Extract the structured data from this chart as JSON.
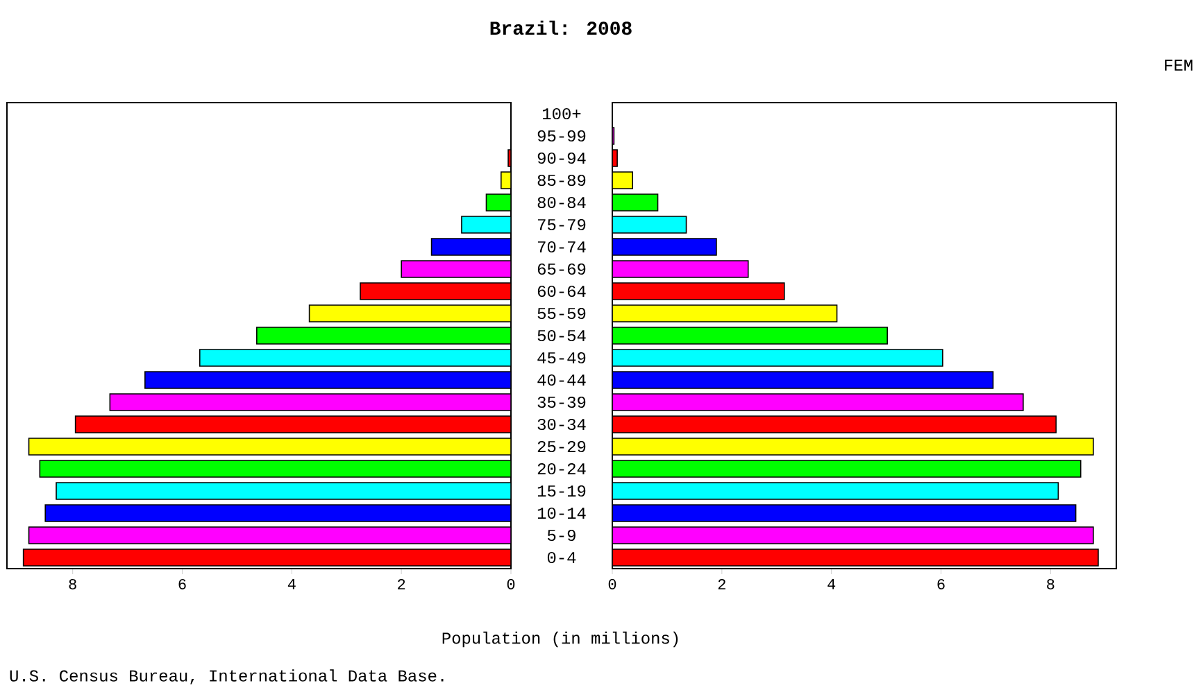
{
  "chart_data": [
    {
      "type": "bar",
      "orientation": "horizontal",
      "title": "Brazil: 2008",
      "xlabel": "Population (in millions)",
      "annotations": [
        "U.S. Census Bureau, International Data Base."
      ],
      "categories": [
        "100+",
        "95-99",
        "90-94",
        "85-89",
        "80-84",
        "75-79",
        "70-74",
        "65-69",
        "60-64",
        "55-59",
        "50-54",
        "45-49",
        "40-44",
        "35-39",
        "30-34",
        "25-29",
        "20-24",
        "15-19",
        "10-14",
        "5-9",
        "0-4"
      ],
      "values": [
        null,
        null,
        0.05,
        0.18,
        0.45,
        0.9,
        1.45,
        2.0,
        2.75,
        3.68,
        4.64,
        5.68,
        6.68,
        7.32,
        7.95,
        8.8,
        8.6,
        8.3,
        8.5,
        8.8,
        8.9
      ],
      "colors": [
        "#0000ff",
        "#ff00ff",
        "#ff0000",
        "#ffff00",
        "#00ff00",
        "#00ffff",
        "#0000ff",
        "#ff00ff",
        "#ff0000",
        "#ffff00",
        "#00ff00",
        "#00ffff",
        "#0000ff",
        "#ff00ff",
        "#ff0000",
        "#ffff00",
        "#00ff00",
        "#00ffff",
        "#0000ff",
        "#ff00ff",
        "#ff0000"
      ],
      "xlim": [
        9.2,
        0
      ],
      "xticks": [
        8,
        6,
        4,
        2,
        0
      ]
    },
    {
      "type": "bar",
      "orientation": "horizontal",
      "annotations": [
        "FEM"
      ],
      "categories": [
        null,
        null,
        null,
        null,
        null,
        null,
        null,
        null,
        null,
        null,
        null,
        null,
        null,
        null,
        null,
        null,
        null,
        null,
        null,
        null,
        null
      ],
      "values": [
        null,
        0.03,
        0.09,
        0.37,
        0.83,
        1.35,
        1.9,
        2.48,
        3.14,
        4.1,
        5.02,
        6.03,
        6.95,
        7.5,
        8.1,
        8.78,
        8.55,
        8.14,
        8.46,
        8.78,
        8.87
      ],
      "colors": [
        "#0000ff",
        "#ff00ff",
        "#ff0000",
        "#ffff00",
        "#00ff00",
        "#00ffff",
        "#0000ff",
        "#ff00ff",
        "#ff0000",
        "#ffff00",
        "#00ff00",
        "#00ffff",
        "#0000ff",
        "#ff00ff",
        "#ff0000",
        "#ffff00",
        "#00ff00",
        "#00ffff",
        "#0000ff",
        "#ff00ff",
        "#ff0000"
      ],
      "xlim": [
        0,
        9.2
      ],
      "xticks": [
        0,
        2,
        4,
        6,
        8
      ],
      "tick_labels": "x"
    }
  ]
}
